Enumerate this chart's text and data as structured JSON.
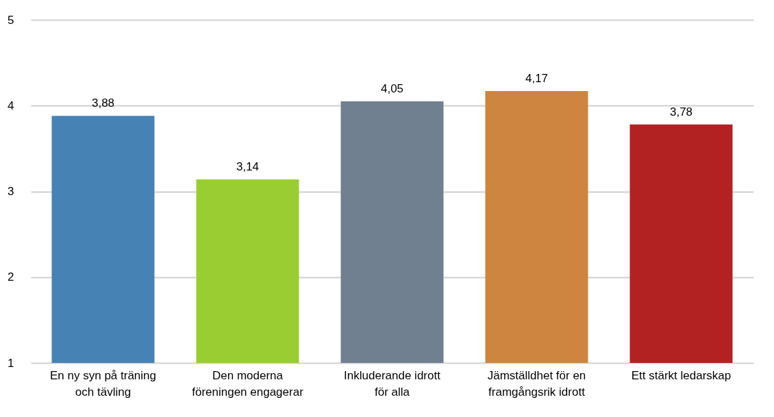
{
  "chart_data": {
    "type": "bar",
    "categories": [
      "En ny syn på träning och tävling",
      "Den moderna föreningen engagerar",
      "Inkluderande idrott för alla",
      "Jämställdhet för en framgångsrik idrott",
      "Ett stärkt ledarskap"
    ],
    "values": [
      3.88,
      3.14,
      4.05,
      4.17,
      3.78
    ],
    "colors": [
      "#4682b4",
      "#9acd32",
      "#708090",
      "#cd853f",
      "#b22222"
    ],
    "value_labels": [
      "3,88",
      "3,14",
      "4,05",
      "4,17",
      "3,78"
    ],
    "ylim": [
      1,
      5
    ],
    "yticks": [
      1,
      2,
      3,
      4,
      5
    ],
    "grid": "y"
  }
}
